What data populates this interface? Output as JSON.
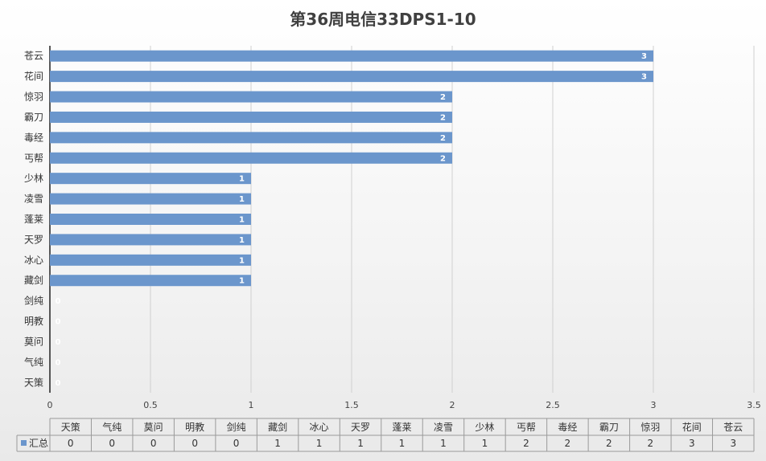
{
  "chart_data": {
    "type": "bar",
    "orientation": "horizontal",
    "title": "第36周电信33DPS1-10",
    "categories": [
      "苍云",
      "花间",
      "惊羽",
      "霸刀",
      "毒经",
      "丐帮",
      "少林",
      "凌雪",
      "蓬莱",
      "天罗",
      "冰心",
      "藏剑",
      "剑纯",
      "明教",
      "莫问",
      "气纯",
      "天策"
    ],
    "series": [
      {
        "name": "汇总",
        "values": [
          3,
          3,
          2,
          2,
          2,
          2,
          1,
          1,
          1,
          1,
          1,
          1,
          0,
          0,
          0,
          0,
          0
        ]
      }
    ],
    "xlim": [
      0,
      3.5
    ],
    "x_ticks": [
      "0",
      "0.5",
      "1",
      "1.5",
      "2",
      "2.5",
      "3",
      "3.5"
    ],
    "grid": true,
    "data_labels": true,
    "colors": {
      "bar": "#6b96cc",
      "grid": "#d0d0d0",
      "axis": "#222222"
    },
    "data_table": {
      "header": [
        "天策",
        "气纯",
        "莫问",
        "明教",
        "剑纯",
        "藏剑",
        "冰心",
        "天罗",
        "蓬莱",
        "凌雪",
        "少林",
        "丐帮",
        "毒经",
        "霸刀",
        "惊羽",
        "花间",
        "苍云"
      ],
      "row_label": "汇总",
      "row_values": [
        "0",
        "0",
        "0",
        "0",
        "0",
        "1",
        "1",
        "1",
        "1",
        "1",
        "1",
        "2",
        "2",
        "2",
        "2",
        "3",
        "3"
      ]
    }
  }
}
